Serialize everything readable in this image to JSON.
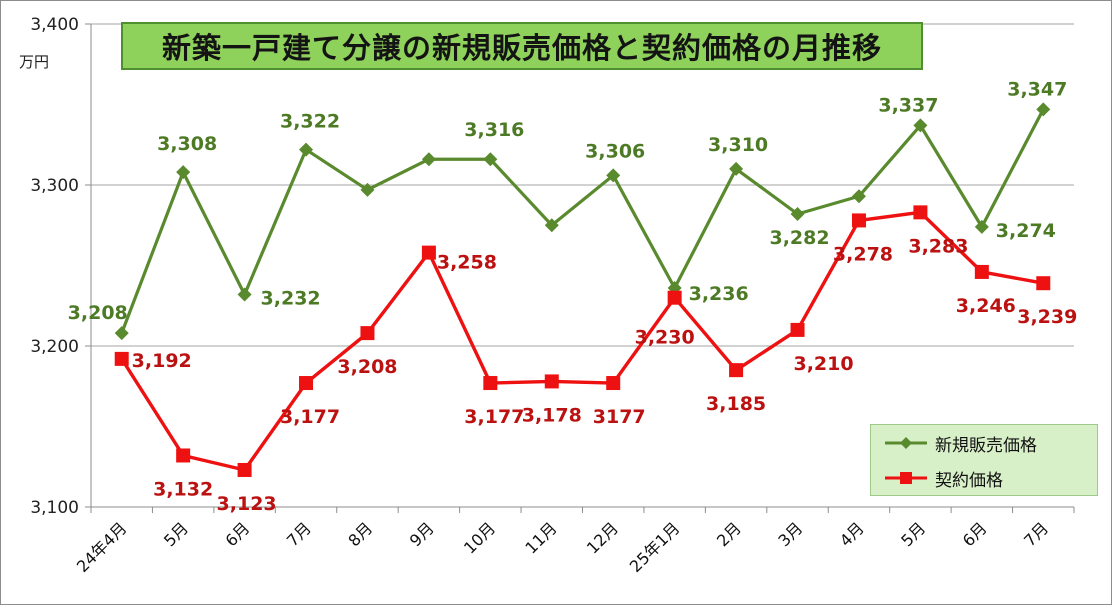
{
  "title": "新築一戸建て分譲の新規販売価格と契約価格の月推移",
  "unit": "万円",
  "chart_data": {
    "type": "line",
    "categories": [
      "24年4月",
      "5月",
      "6月",
      "7月",
      "8月",
      "9月",
      "10月",
      "11月",
      "12月",
      "25年1月",
      "2月",
      "3月",
      "4月",
      "5月",
      "6月",
      "7月"
    ],
    "ylim": [
      3100,
      3400
    ],
    "yticks": [
      "3,100",
      "3,200",
      "3,300",
      "3,400"
    ],
    "ytick_values": [
      3100,
      3200,
      3300,
      3400
    ],
    "grid": true,
    "legend_position": "bottom-right",
    "series": [
      {
        "name": "新規販売価格",
        "color": "#5a8a2e",
        "label_color": "#4d7a25",
        "marker": "diamond",
        "values": [
          3208,
          3308,
          3232,
          3322,
          3297,
          3316,
          3316,
          3275,
          3306,
          3236,
          3310,
          3282,
          3293,
          3337,
          3274,
          3347
        ],
        "labels": [
          "3,208",
          "3,308",
          "3,232",
          "3,322",
          "",
          "",
          "3,316",
          "",
          "3,306",
          "3,236",
          "3,310",
          "3,282",
          "",
          "3,337",
          "3,274",
          "3,347"
        ]
      },
      {
        "name": "契約価格",
        "color": "#ee1111",
        "label_color": "#bb1111",
        "marker": "square",
        "values": [
          3192,
          3132,
          3123,
          3177,
          3208,
          3258,
          3177,
          3178,
          3177,
          3230,
          3185,
          3210,
          3278,
          3283,
          3246,
          3239
        ],
        "labels": [
          "3,192",
          "3,132",
          "3,123",
          "3,177",
          "3,208",
          "3,258",
          "3,177",
          "3,178",
          "3177",
          "3,230",
          "3,185",
          "3,210",
          "3,278",
          "3,283",
          "3,246",
          "3,239"
        ]
      }
    ]
  }
}
